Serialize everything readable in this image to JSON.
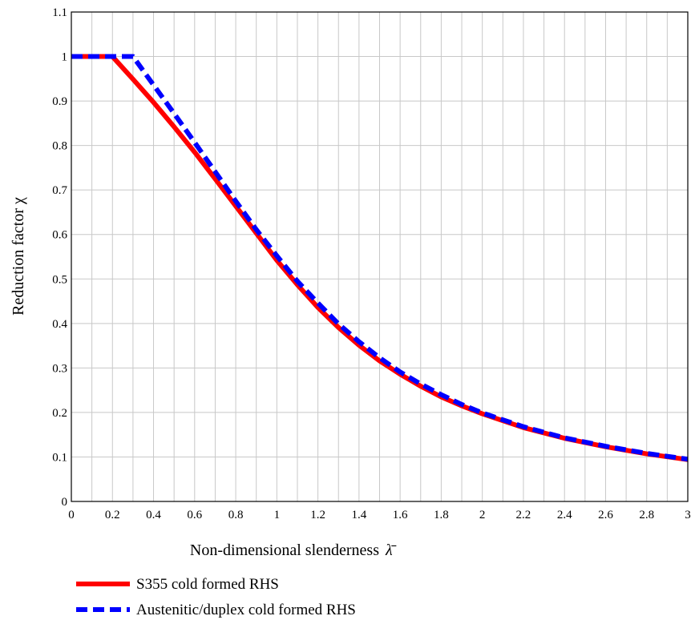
{
  "chart_data": {
    "type": "line",
    "title": "",
    "xlabel": "Non-dimensional slenderness",
    "xlabel_symbol": "λ̄",
    "ylabel": "Reduction factor χ",
    "xlim": [
      0,
      3
    ],
    "ylim": [
      0,
      1.1
    ],
    "grid": true,
    "legend_position": "bottom-left",
    "xticks": [
      "0",
      "0.2",
      "0.4",
      "0.6",
      "0.8",
      "1",
      "1.2",
      "1.4",
      "1.6",
      "1.8",
      "2",
      "2.2",
      "2.4",
      "2.6",
      "2.8",
      "3"
    ],
    "yticks": [
      "0",
      "0.1",
      "0.2",
      "0.3",
      "0.4",
      "0.5",
      "0.6",
      "0.7",
      "0.8",
      "0.9",
      "1",
      "1.1"
    ],
    "series": [
      {
        "name": "S355 cold formed RHS",
        "color": "#ff0000",
        "style": "solid",
        "x": [
          0,
          0.2,
          0.3,
          0.4,
          0.5,
          0.6,
          0.7,
          0.8,
          0.9,
          1.0,
          1.1,
          1.2,
          1.3,
          1.4,
          1.5,
          1.6,
          1.7,
          1.8,
          1.9,
          2.0,
          2.2,
          2.4,
          2.6,
          2.8,
          3.0
        ],
        "y": [
          1.0,
          1.0,
          0.949,
          0.897,
          0.842,
          0.785,
          0.725,
          0.664,
          0.603,
          0.542,
          0.487,
          0.436,
          0.391,
          0.351,
          0.316,
          0.286,
          0.259,
          0.235,
          0.215,
          0.197,
          0.166,
          0.142,
          0.123,
          0.107,
          0.094
        ]
      },
      {
        "name": "Austenitic/duplex cold formed RHS",
        "color": "#0000ff",
        "style": "dashed",
        "x": [
          0,
          0.3,
          0.4,
          0.5,
          0.6,
          0.7,
          0.8,
          0.9,
          1.0,
          1.1,
          1.2,
          1.3,
          1.4,
          1.5,
          1.6,
          1.7,
          1.8,
          1.9,
          2.0,
          2.2,
          2.4,
          2.6,
          2.8,
          3.0
        ],
        "y": [
          1.0,
          1.0,
          0.936,
          0.872,
          0.807,
          0.741,
          0.675,
          0.611,
          0.552,
          0.495,
          0.446,
          0.399,
          0.359,
          0.323,
          0.291,
          0.264,
          0.24,
          0.218,
          0.199,
          0.168,
          0.143,
          0.124,
          0.108,
          0.095
        ]
      }
    ]
  }
}
